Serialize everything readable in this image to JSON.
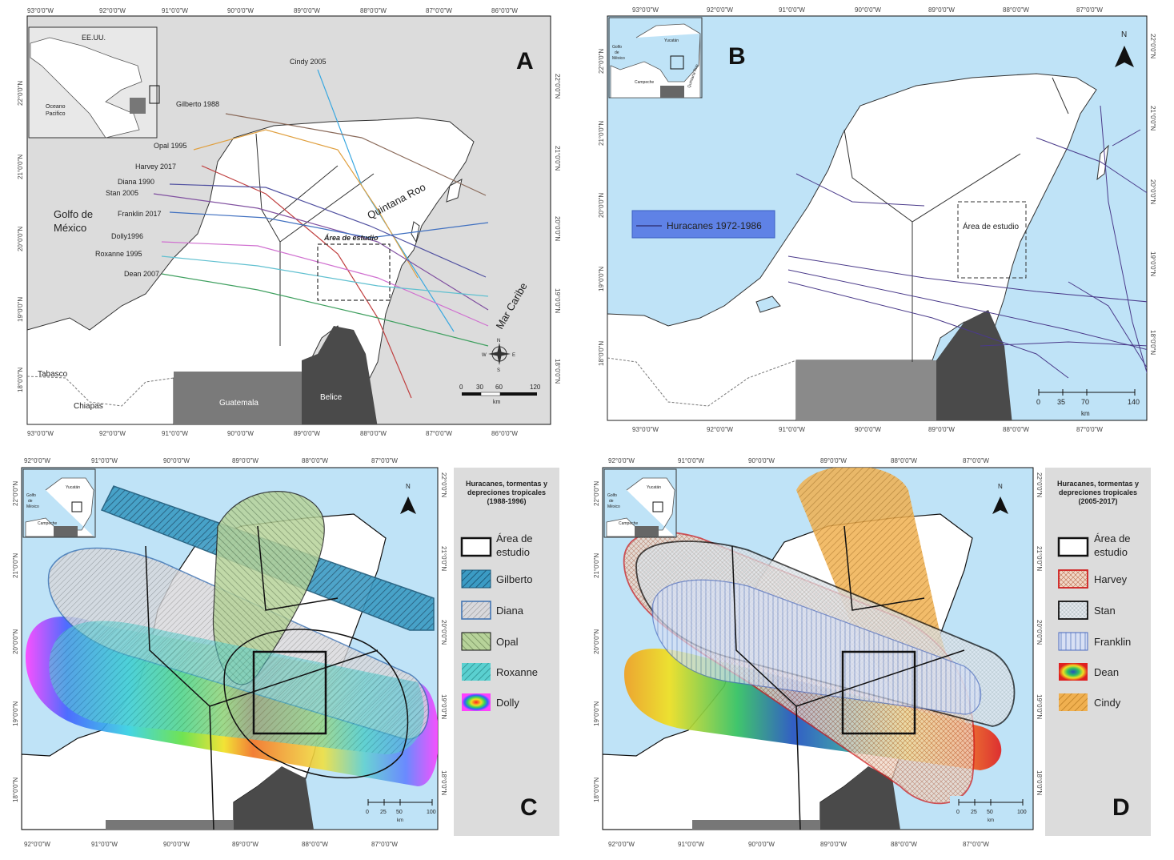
{
  "panel_a": {
    "letter": "A",
    "lon_ticks": [
      "93°0'0\"W",
      "92°0'0\"W",
      "91°0'0\"W",
      "90°0'0\"W",
      "89°0'0\"W",
      "88°0'0\"W",
      "87°0'0\"W",
      "86°0'0\"W"
    ],
    "lat_ticks": [
      "22°0'0\"N",
      "21°0'0\"N",
      "20°0'0\"N",
      "19°0'0\"N",
      "18°0'0\"N"
    ],
    "inset": {
      "label_usa": "EE.UU.",
      "label_pacific_1": "Oceano",
      "label_pacific_2": "Pacifico"
    },
    "place_labels": {
      "gulf_1": "Golfo de",
      "gulf_2": "México",
      "quintana_roo": "Quintana Roo",
      "caribe": "Mar Caribe",
      "study_area": "Área de estudio",
      "tabasco": "Tabasco",
      "chiapas": "Chiapas",
      "guatemala": "Guatemala",
      "belize": "Belice"
    },
    "tracks": [
      {
        "name": "Cindy 2005",
        "color": "#3aa8e0"
      },
      {
        "name": "Gilberto 1988",
        "color": "#8a6a5a"
      },
      {
        "name": "Opal 1995",
        "color": "#e0a040"
      },
      {
        "name": "Harvey 2017",
        "color": "#c04040"
      },
      {
        "name": "Diana 1990",
        "color": "#5050a0"
      },
      {
        "name": "Stan 2005",
        "color": "#8050a0"
      },
      {
        "name": "Franklin 2017",
        "color": "#4070c0"
      },
      {
        "name": "Dolly1996",
        "color": "#d070d0"
      },
      {
        "name": "Roxanne 1995",
        "color": "#60c0d0"
      },
      {
        "name": "Dean 2007",
        "color": "#40a060"
      }
    ],
    "scale": {
      "ticks": [
        "0",
        "30",
        "60",
        "120"
      ],
      "unit": "km"
    },
    "compass": {
      "n": "N",
      "s": "S",
      "e": "E",
      "w": "W"
    }
  },
  "panel_b": {
    "letter": "B",
    "lon_ticks": [
      "93°0'0\"W",
      "92°0'0\"W",
      "91°0'0\"W",
      "90°0'0\"W",
      "89°0'0\"W",
      "88°0'0\"W",
      "87°0'0\"W"
    ],
    "lat_ticks": [
      "22°0'0\"N",
      "21°0'0\"N",
      "20°0'0\"N",
      "19°0'0\"N",
      "18°0'0\"N"
    ],
    "inset": {
      "gulf_1": "Golfo",
      "gulf_2": "de",
      "gulf_3": "México",
      "yucatan": "Yucatán",
      "campeche": "Campeche",
      "qroo": "Quintana Roo"
    },
    "legend_label": "Huracanes 1972-1986",
    "study_area": "Área de estudio",
    "north": "N",
    "scale": {
      "ticks": [
        "0",
        "35",
        "70",
        "140"
      ],
      "unit": "km"
    }
  },
  "panel_c": {
    "letter": "C",
    "lon_ticks": [
      "92°0'0\"W",
      "91°0'0\"W",
      "90°0'0\"W",
      "89°0'0\"W",
      "88°0'0\"W",
      "87°0'0\"W"
    ],
    "lat_ticks": [
      "22°0'0\"N",
      "21°0'0\"N",
      "20°0'0\"N",
      "19°0'0\"N",
      "18°0'0\"N"
    ],
    "inset": {
      "gulf_1": "Golfo",
      "gulf_2": "de",
      "gulf_3": "México",
      "yucatan": "Yucatán",
      "campeche": "Campeche"
    },
    "north": "N",
    "legend_title": [
      "Huracanes, tormentas y",
      "depreciones tropicales",
      "(1988-1996)"
    ],
    "legend_items": [
      {
        "line1": "Área de",
        "line2": "estudio",
        "type": "box"
      },
      {
        "line1": "Gilberto",
        "type": "gilberto"
      },
      {
        "line1": "Diana",
        "type": "diana"
      },
      {
        "line1": "Opal",
        "type": "opal"
      },
      {
        "line1": "Roxanne",
        "type": "roxanne"
      },
      {
        "line1": "Dolly",
        "type": "dolly"
      }
    ],
    "scale": {
      "ticks": [
        "0",
        "25",
        "50",
        "100"
      ],
      "unit": "km"
    }
  },
  "panel_d": {
    "letter": "D",
    "lon_ticks": [
      "92°0'0\"W",
      "91°0'0\"W",
      "90°0'0\"W",
      "89°0'0\"W",
      "88°0'0\"W",
      "87°0'0\"W"
    ],
    "lat_ticks": [
      "22°0'0\"N",
      "21°0'0\"N",
      "20°0'0\"N",
      "19°0'0\"N",
      "18°0'0\"N"
    ],
    "inset": {
      "gulf_1": "Golfo",
      "gulf_2": "de",
      "gulf_3": "México",
      "yucatan": "Yucatán",
      "campeche": "Campeche"
    },
    "north": "N",
    "legend_title": [
      "Huracanes, tormentas y",
      "depreciones tropicales",
      "(2005-2017)"
    ],
    "legend_items": [
      {
        "line1": "Área de",
        "line2": "estudio",
        "type": "box"
      },
      {
        "line1": "Harvey",
        "type": "harvey"
      },
      {
        "line1": "Stan",
        "type": "stan"
      },
      {
        "line1": "Franklin",
        "type": "franklin"
      },
      {
        "line1": "Dean",
        "type": "dean"
      },
      {
        "line1": "Cindy",
        "type": "cindy"
      }
    ],
    "scale": {
      "ticks": [
        "0",
        "25",
        "50",
        "100"
      ],
      "unit": "km"
    }
  }
}
